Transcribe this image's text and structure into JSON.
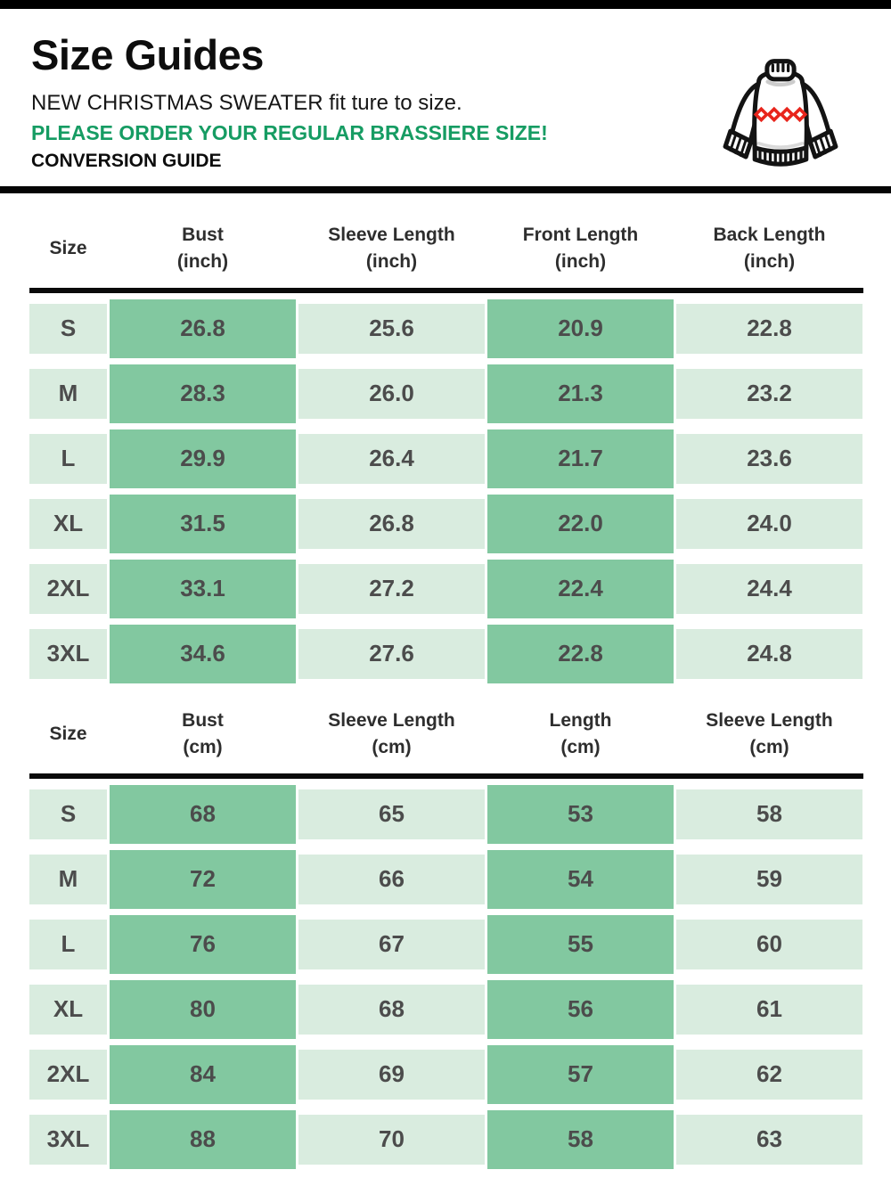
{
  "header": {
    "title": "Size Guides",
    "subtitle": "NEW CHRISTMAS SWEATER fit ture to size.",
    "warning": "PLEASE ORDER YOUR REGULAR BRASSIERE SIZE!",
    "conversion": "CONVERSION GUIDE",
    "icon": "christmas-sweater-icon"
  },
  "colors": {
    "accent_green": "#169c63",
    "cell_dark": "#82c8a0",
    "cell_light": "#d9ecdf",
    "value_text": "#4c4c4c",
    "line_black": "#0a0a0a",
    "diamond_red": "#e8251c"
  },
  "tables": [
    {
      "name": "inch",
      "columns": [
        {
          "label": "Size",
          "unit": ""
        },
        {
          "label": "Bust",
          "unit": "(inch)"
        },
        {
          "label": "Sleeve Length",
          "unit": "(inch)"
        },
        {
          "label": "Front Length",
          "unit": "(inch)"
        },
        {
          "label": "Back Length",
          "unit": "(inch)"
        }
      ],
      "rows": [
        {
          "size": "S",
          "values": [
            "26.8",
            "25.6",
            "20.9",
            "22.8"
          ]
        },
        {
          "size": "M",
          "values": [
            "28.3",
            "26.0",
            "21.3",
            "23.2"
          ]
        },
        {
          "size": "L",
          "values": [
            "29.9",
            "26.4",
            "21.7",
            "23.6"
          ]
        },
        {
          "size": "XL",
          "values": [
            "31.5",
            "26.8",
            "22.0",
            "24.0"
          ]
        },
        {
          "size": "2XL",
          "values": [
            "33.1",
            "27.2",
            "22.4",
            "24.4"
          ]
        },
        {
          "size": "3XL",
          "values": [
            "34.6",
            "27.6",
            "22.8",
            "24.8"
          ]
        }
      ]
    },
    {
      "name": "cm",
      "columns": [
        {
          "label": "Size",
          "unit": ""
        },
        {
          "label": "Bust",
          "unit": "(cm)"
        },
        {
          "label": "Sleeve Length",
          "unit": "(cm)"
        },
        {
          "label": "Length",
          "unit": "(cm)"
        },
        {
          "label": "Sleeve Length",
          "unit": "(cm)"
        }
      ],
      "rows": [
        {
          "size": "S",
          "values": [
            "68",
            "65",
            "53",
            "58"
          ]
        },
        {
          "size": "M",
          "values": [
            "72",
            "66",
            "54",
            "59"
          ]
        },
        {
          "size": "L",
          "values": [
            "76",
            "67",
            "55",
            "60"
          ]
        },
        {
          "size": "XL",
          "values": [
            "80",
            "68",
            "56",
            "61"
          ]
        },
        {
          "size": "2XL",
          "values": [
            "84",
            "69",
            "57",
            "62"
          ]
        },
        {
          "size": "3XL",
          "values": [
            "88",
            "70",
            "58",
            "63"
          ]
        }
      ]
    }
  ]
}
